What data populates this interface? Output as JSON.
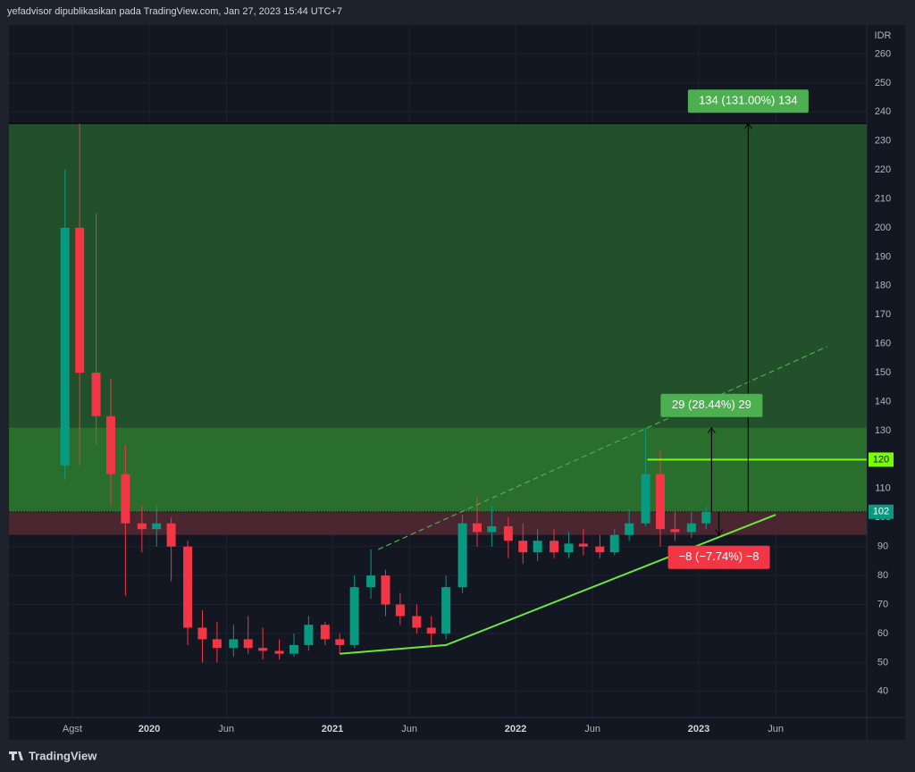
{
  "chart_data": {
    "type": "candlestick",
    "header": "yefadvisor dipublikasikan pada TradingView.com, Jan 27, 2023 15:44 UTC+7",
    "currency": "IDR",
    "brand": "TradingView",
    "xlim": [
      2019.234,
      2023.917
    ],
    "ylim": [
      31,
      270
    ],
    "xticks": [
      {
        "value": 2019.58,
        "label": "Agst"
      },
      2020,
      {
        "value": 2020.42,
        "label": "Jun"
      },
      2021,
      {
        "value": 2021.42,
        "label": "Jun"
      },
      2022,
      {
        "value": 2022.42,
        "label": "Jun"
      },
      2023,
      {
        "value": 2023.42,
        "label": "Jun"
      }
    ],
    "yticks": [
      40,
      50,
      60,
      70,
      80,
      90,
      100,
      110,
      120,
      130,
      140,
      150,
      160,
      170,
      180,
      190,
      200,
      210,
      220,
      230,
      240,
      250,
      260
    ],
    "grid": true,
    "up_color": "#089981",
    "down_color": "#f23645",
    "candles": {
      "x": [
        2019.54,
        2019.62,
        2019.71,
        2019.79,
        2019.87,
        2019.96,
        2020.04,
        2020.12,
        2020.21,
        2020.29,
        2020.37,
        2020.46,
        2020.54,
        2020.62,
        2020.71,
        2020.79,
        2020.87,
        2020.96,
        2021.04,
        2021.12,
        2021.21,
        2021.29,
        2021.37,
        2021.46,
        2021.54,
        2021.62,
        2021.71,
        2021.79,
        2021.87,
        2021.96,
        2022.04,
        2022.12,
        2022.21,
        2022.29,
        2022.37,
        2022.46,
        2022.54,
        2022.62,
        2022.71,
        2022.79,
        2022.87,
        2022.96,
        2023.04
      ],
      "open": [
        118,
        200,
        150,
        135,
        115,
        98,
        96,
        98,
        90,
        62,
        58,
        55,
        58,
        55,
        54,
        53,
        56,
        63,
        58,
        56,
        76,
        80,
        70,
        66,
        62,
        60,
        76,
        98,
        95,
        97,
        92,
        88,
        92,
        88,
        91,
        90,
        88,
        94,
        98,
        115,
        96,
        95,
        98
      ],
      "high": [
        220,
        236,
        205,
        148,
        125,
        104,
        104,
        100,
        92,
        68,
        64,
        63,
        66,
        62,
        58,
        60,
        66,
        64,
        60,
        80,
        89,
        82,
        74,
        70,
        66,
        80,
        101,
        107,
        104,
        100,
        98,
        96,
        96,
        95,
        96,
        94,
        96,
        103,
        131,
        123,
        102,
        102,
        104
      ],
      "low": [
        113,
        118,
        125,
        104,
        73,
        88,
        90,
        78,
        56,
        50,
        50,
        52,
        53,
        51,
        51,
        52,
        54,
        56,
        53,
        55,
        72,
        66,
        63,
        60,
        56,
        58,
        74,
        90,
        90,
        86,
        84,
        85,
        86,
        86,
        87,
        86,
        87,
        92,
        97,
        90,
        92,
        93,
        96
      ],
      "close": [
        200,
        150,
        135,
        115,
        98,
        96,
        98,
        90,
        62,
        58,
        55,
        58,
        55,
        54,
        53,
        56,
        63,
        58,
        56,
        76,
        80,
        70,
        66,
        62,
        60,
        76,
        98,
        95,
        97,
        92,
        88,
        92,
        88,
        91,
        90,
        88,
        94,
        98,
        115,
        96,
        95,
        98,
        102
      ]
    },
    "zones": [
      {
        "low": 102,
        "high": 236,
        "color": "#22502a"
      },
      {
        "low": 102,
        "high": 131,
        "color": "#2a6e2e"
      },
      {
        "low": 94,
        "high": 102,
        "color": "#4a2631"
      }
    ],
    "horizontal_line": {
      "value": 120,
      "color": "#76ff03"
    },
    "last_price": 102,
    "trendlines": [
      {
        "x": [
          2021.04,
          2021.62,
          2023.42
        ],
        "y": [
          53,
          56,
          101
        ],
        "dashed": false,
        "color": "#6ee63c"
      },
      {
        "x": [
          2021.25,
          2023.7
        ],
        "y": [
          89,
          159
        ],
        "dashed": true,
        "color": "#4caf50"
      }
    ],
    "measures": [
      {
        "x": 2023.27,
        "from": 102,
        "to": 236,
        "label": "134 (131.00%) 134",
        "color": "#4caf50"
      },
      {
        "x": 2023.07,
        "from": 102,
        "to": 131,
        "label": "29 (28.44%) 29",
        "color": "#4caf50"
      },
      {
        "x": 2023.11,
        "from": 102,
        "to": 94,
        "label": "−8 (−7.74%) −8",
        "color": "#f23645"
      }
    ]
  }
}
